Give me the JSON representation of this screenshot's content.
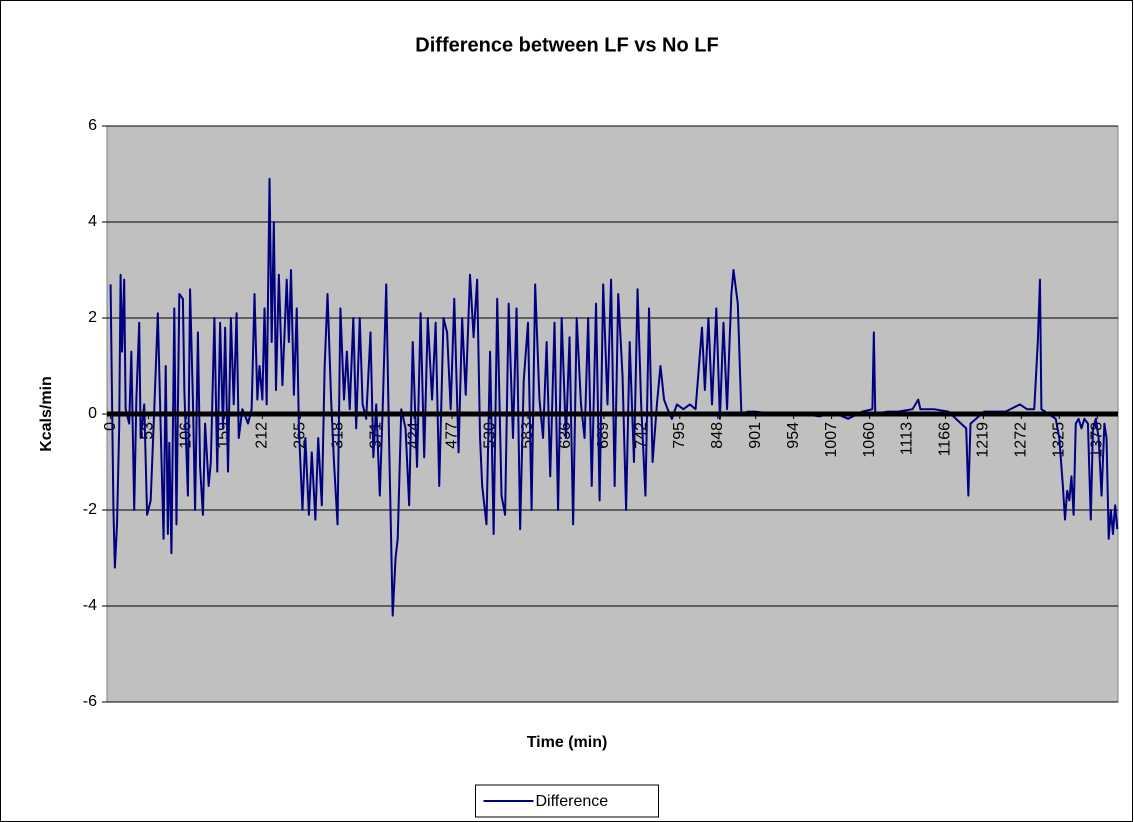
{
  "chart_data": {
    "type": "line",
    "title": "Difference between LF vs No LF",
    "x_label": "Time (min)",
    "y_label": "Kcals/min",
    "x": [
      0,
      4,
      6,
      9,
      12,
      14,
      16,
      19,
      21,
      26,
      29,
      33,
      36,
      40,
      42,
      47,
      51,
      56,
      61,
      66,
      70,
      74,
      77,
      80,
      82,
      85,
      89,
      92,
      96,
      101,
      103,
      108,
      111,
      115,
      118,
      122,
      125,
      129,
      132,
      137,
      140,
      145,
      149,
      153,
      157,
      160,
      164,
      168,
      172,
      176,
      179,
      184,
      187,
      192,
      197,
      201,
      205,
      208,
      212,
      215,
      218,
      222,
      225,
      228,
      231,
      235,
      240,
      246,
      249,
      252,
      256,
      260,
      263,
      268,
      272,
      277,
      281,
      286,
      290,
      295,
      299,
      303,
      308,
      312,
      317,
      321,
      326,
      330,
      334,
      339,
      343,
      348,
      352,
      357,
      363,
      367,
      371,
      376,
      380,
      385,
      389,
      394,
      398,
      401,
      406,
      412,
      417,
      422,
      428,
      433,
      438,
      443,
      449,
      454,
      459,
      465,
      470,
      475,
      480,
      486,
      491,
      496,
      502,
      507,
      512,
      516,
      519,
      525,
      530,
      535,
      540,
      546,
      551,
      556,
      562,
      567,
      572,
      577,
      583,
      588,
      593,
      599,
      604,
      609,
      614,
      620,
      625,
      630,
      636,
      641,
      646,
      651,
      657,
      662,
      667,
      672,
      678,
      683,
      688,
      694,
      699,
      704,
      709,
      715,
      720,
      725,
      731,
      736,
      741,
      747,
      752,
      757,
      763,
      768,
      773,
      778,
      784,
      791,
      800,
      809,
      817,
      826,
      830,
      835,
      840,
      846,
      851,
      856,
      861,
      867,
      870,
      876,
      881,
      890,
      900,
      930,
      960,
      990,
      1010,
      1030,
      1050,
      1064,
      1066,
      1068,
      1085,
      1100,
      1120,
      1128,
      1131,
      1150,
      1170,
      1195,
      1198,
      1201,
      1220,
      1250,
      1270,
      1280,
      1283,
      1290,
      1295,
      1298,
      1300,
      1310,
      1320,
      1325,
      1330,
      1333,
      1336,
      1339,
      1342,
      1345,
      1348,
      1352,
      1356,
      1360,
      1365,
      1369,
      1372,
      1376,
      1380,
      1384,
      1388,
      1391,
      1394,
      1397,
      1400,
      1403,
      1406
    ],
    "series": [
      {
        "name": "Difference",
        "color": "#000080",
        "values": [
          2.7,
          -2,
          -3.2,
          -2.3,
          -0.3,
          2.9,
          1.3,
          2.8,
          0.1,
          -0.2,
          1.3,
          -2,
          0.3,
          1.9,
          -0.5,
          0.2,
          -2.1,
          -1.8,
          0.1,
          2.1,
          -0.3,
          -2.6,
          1.0,
          -2.5,
          -0.6,
          -2.9,
          2.2,
          -2.3,
          2.5,
          2.4,
          0.5,
          -1.7,
          2.6,
          0.3,
          -2.0,
          1.7,
          -1.1,
          -2.1,
          -0.2,
          -1.5,
          -1.0,
          2.0,
          -1.2,
          1.9,
          -0.3,
          1.8,
          -1.2,
          2.0,
          0.2,
          2.1,
          -0.5,
          0.1,
          0,
          -0.2,
          0.1,
          2.5,
          0.3,
          1.0,
          0.3,
          2.2,
          0.2,
          4.9,
          1.5,
          4.0,
          0.5,
          2.9,
          0.6,
          2.8,
          1.5,
          3.0,
          0.4,
          2.2,
          -0.3,
          -2.0,
          -0.5,
          -2.1,
          -0.8,
          -2.2,
          -0.5,
          -1.9,
          1.0,
          2.5,
          0.3,
          -1.0,
          -2.3,
          2.2,
          0.3,
          1.3,
          0.1,
          2.0,
          -0.3,
          2.0,
          0.2,
          -0.1,
          1.7,
          -0.9,
          0.2,
          -1.7,
          0.1,
          2.7,
          -0.6,
          -4.2,
          -3.0,
          -2.6,
          0.1,
          -0.3,
          -1.9,
          1.5,
          -1.1,
          2.1,
          -0.9,
          2.0,
          0.3,
          1.9,
          -1.5,
          2.0,
          1.7,
          0.1,
          2.4,
          -0.8,
          2.0,
          0.4,
          2.9,
          1.6,
          2.8,
          -0.5,
          -1.5,
          -2.3,
          1.3,
          -2.5,
          2.4,
          -1.7,
          -2.1,
          2.3,
          -0.5,
          2.2,
          -2.4,
          0.7,
          1.9,
          -2.0,
          2.7,
          0.3,
          -0.5,
          1.5,
          -1.3,
          1.9,
          -2.0,
          2.0,
          -0.5,
          1.6,
          -2.3,
          2.0,
          0.2,
          -0.5,
          2.0,
          -1.5,
          2.3,
          -1.8,
          2.7,
          0.2,
          2.8,
          -1.5,
          2.5,
          0.8,
          -2.0,
          1.5,
          -1.0,
          2.6,
          0.2,
          -1.7,
          2.2,
          -1.0,
          0.2,
          1.0,
          0.3,
          0.1,
          -0.1,
          0.2,
          0.1,
          0.2,
          0.1,
          1.8,
          0.5,
          2.0,
          0.2,
          2.2,
          -0.1,
          1.9,
          0.1,
          2.5,
          3.0,
          2.3,
          0.0,
          0.05,
          0.05,
          0.0,
          0.02,
          -0.05,
          0.03,
          -0.1,
          0.05,
          0.1,
          1.7,
          0.0,
          0.05,
          0.05,
          0.1,
          0.3,
          0.1,
          0.1,
          0.05,
          -0.3,
          -1.7,
          -0.2,
          0.05,
          0.05,
          0.2,
          0.1,
          0.1,
          0.1,
          1.5,
          2.8,
          0.1,
          0.0,
          -0.1,
          -0.5,
          -1.5,
          -2.2,
          -1.6,
          -1.8,
          -1.3,
          -2.1,
          -0.2,
          -0.1,
          -0.3,
          -0.1,
          -0.2,
          -2.2,
          -0.3,
          -0.1,
          -0.5,
          -1.7,
          -0.2,
          -0.5,
          -2.6,
          -2.0,
          -2.5,
          -1.9,
          -2.4
        ]
      }
    ],
    "xlim": [
      -5,
      1407
    ],
    "xticks": [
      0,
      53,
      106,
      159,
      212,
      265,
      318,
      371,
      424,
      477,
      530,
      583,
      636,
      689,
      742,
      795,
      848,
      901,
      954,
      1007,
      1060,
      1113,
      1166,
      1219,
      1272,
      1325,
      1378
    ],
    "ylim": [
      -6,
      6
    ],
    "yticks": [
      -6,
      -4,
      -2,
      0,
      2,
      4,
      6
    ],
    "grid": true,
    "legend": "bottom"
  }
}
